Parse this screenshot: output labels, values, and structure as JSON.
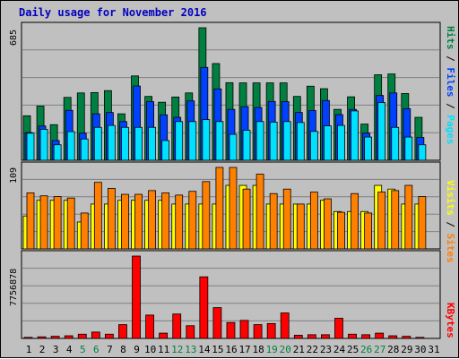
{
  "title": "Daily usage for November 2016",
  "colors": {
    "hits": "#008040",
    "files": "#0040ff",
    "pages": "#00e0ff",
    "visits": "#ffff00",
    "sites": "#ff8000",
    "kbytes": "#ff0000",
    "weekend_label": "#008040",
    "weekday_label": "#000000"
  },
  "chart_data": [
    {
      "type": "bar",
      "name": "pages-files-hits",
      "max_label": "685",
      "y_range": [
        0,
        685
      ],
      "legend": [
        {
          "label": "Pages",
          "color": "#00e0ff"
        },
        {
          "label": "Files",
          "color": "#0040ff"
        },
        {
          "label": "Hits",
          "color": "#008040"
        }
      ],
      "categories": [
        "1",
        "2",
        "3",
        "4",
        "5",
        "6",
        "7",
        "8",
        "9",
        "10",
        "11",
        "12",
        "13",
        "14",
        "15",
        "16",
        "17",
        "18",
        "19",
        "20",
        "21",
        "22",
        "23",
        "24",
        "25",
        "26",
        "27",
        "28",
        "29",
        "30",
        "31"
      ],
      "series": [
        {
          "name": "Hits",
          "values": [
            230,
            280,
            184,
            325,
            348,
            350,
            360,
            240,
            436,
            330,
            300,
            327,
            348,
            685,
            500,
            401,
            400,
            400,
            400,
            400,
            330,
            383,
            370,
            263,
            328,
            187,
            442,
            446,
            345,
            222,
            0
          ]
        },
        {
          "name": "Files",
          "values": [
            143,
            177,
            102,
            258,
            140,
            240,
            247,
            200,
            384,
            303,
            235,
            222,
            307,
            480,
            369,
            263,
            277,
            273,
            304,
            303,
            247,
            257,
            309,
            236,
            263,
            140,
            335,
            348,
            267,
            118,
            0
          ]
        },
        {
          "name": "Pages",
          "values": [
            140,
            160,
            80,
            148,
            110,
            170,
            180,
            170,
            170,
            170,
            102,
            200,
            200,
            210,
            200,
            134,
            155,
            200,
            197,
            200,
            195,
            149,
            178,
            180,
            255,
            120,
            298,
            170,
            120,
            80,
            0
          ]
        }
      ]
    },
    {
      "type": "bar",
      "name": "visits-sites",
      "max_label": "109",
      "y_range": [
        0,
        109
      ],
      "legend": [
        {
          "label": "Sites",
          "color": "#ff8000"
        },
        {
          "label": "Visits",
          "color": "#ffff00"
        }
      ],
      "categories": [
        "1",
        "2",
        "3",
        "4",
        "5",
        "6",
        "7",
        "8",
        "9",
        "10",
        "11",
        "12",
        "13",
        "14",
        "15",
        "16",
        "17",
        "18",
        "19",
        "20",
        "21",
        "22",
        "23",
        "24",
        "25",
        "26",
        "27",
        "28",
        "29",
        "30",
        "31"
      ],
      "series": [
        {
          "name": "Visits",
          "values": [
            44,
            65,
            65,
            65,
            36,
            60,
            60,
            65,
            65,
            65,
            65,
            60,
            60,
            60,
            60,
            85,
            85,
            85,
            60,
            60,
            60,
            60,
            65,
            50,
            50,
            50,
            85,
            80,
            60,
            60,
            0
          ]
        },
        {
          "name": "Sites",
          "values": [
            75,
            71,
            70,
            68,
            48,
            89,
            81,
            73,
            73,
            78,
            75,
            72,
            77,
            90,
            109,
            109,
            80,
            100,
            74,
            80,
            60,
            76,
            67,
            49,
            74,
            48,
            76,
            78,
            85,
            70,
            0
          ]
        }
      ]
    },
    {
      "type": "bar",
      "name": "kbytes",
      "max_label": "7756878",
      "y_range": [
        0,
        7756878
      ],
      "legend": [
        {
          "label": "KBytes",
          "color": "#ff0000"
        }
      ],
      "categories": [
        "1",
        "2",
        "3",
        "4",
        "5",
        "6",
        "7",
        "8",
        "9",
        "10",
        "11",
        "12",
        "13",
        "14",
        "15",
        "16",
        "17",
        "18",
        "19",
        "20",
        "21",
        "22",
        "23",
        "24",
        "25",
        "26",
        "27",
        "28",
        "29",
        "30",
        "31"
      ],
      "series": [
        {
          "name": "KBytes",
          "values": [
            100000,
            150000,
            200000,
            250000,
            400000,
            600000,
            400000,
            1300000,
            7756878,
            2200000,
            500000,
            2300000,
            1200000,
            5800000,
            2900000,
            1500000,
            1700000,
            1300000,
            1400000,
            2400000,
            300000,
            350000,
            350000,
            1900000,
            400000,
            350000,
            500000,
            250000,
            200000,
            100000,
            0
          ]
        }
      ]
    }
  ],
  "x_axis": {
    "labels": [
      "1",
      "2",
      "3",
      "4",
      "5",
      "6",
      "7",
      "8",
      "9",
      "10",
      "11",
      "12",
      "13",
      "14",
      "15",
      "16",
      "17",
      "18",
      "19",
      "20",
      "21",
      "22",
      "23",
      "24",
      "25",
      "26",
      "27",
      "28",
      "29",
      "30",
      "31"
    ],
    "weekend_days": [
      5,
      6,
      12,
      13,
      19,
      20,
      26,
      27
    ]
  }
}
